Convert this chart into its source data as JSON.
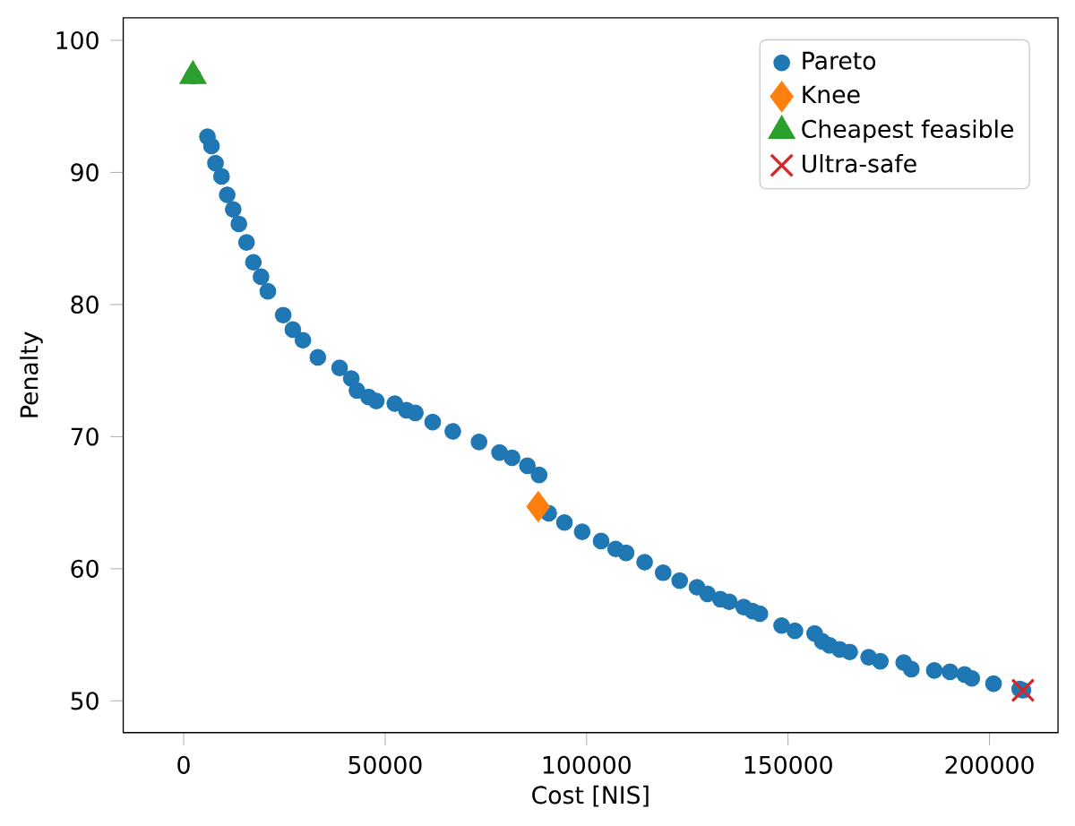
{
  "chart_data": {
    "type": "scatter",
    "xlabel": "Cost [NIS]",
    "ylabel": "Penalty",
    "xlim": [
      -15000,
      217000
    ],
    "ylim": [
      47.6,
      101.7
    ],
    "xticks": [
      0,
      50000,
      100000,
      150000,
      200000
    ],
    "yticks": [
      50,
      60,
      70,
      80,
      90,
      100
    ],
    "legend": "top right",
    "grid": false,
    "series": [
      {
        "name": "Pareto",
        "color": "#1f77b4",
        "marker": "circle",
        "x": [
          2300,
          5900,
          6900,
          7900,
          9400,
          10800,
          12300,
          13700,
          15600,
          17300,
          19200,
          20900,
          24700,
          27100,
          29600,
          33300,
          38700,
          41600,
          43000,
          45900,
          47800,
          52400,
          55300,
          57500,
          61800,
          66800,
          73300,
          78400,
          81500,
          85300,
          88200,
          90600,
          94500,
          98900,
          103600,
          107200,
          109800,
          114400,
          119000,
          123100,
          127400,
          130000,
          133200,
          135400,
          139000,
          141200,
          143000,
          148400,
          151700,
          156600,
          158500,
          160300,
          162800,
          165300,
          170000,
          172900,
          178700,
          180600,
          186300,
          190200,
          193800,
          195600,
          201000,
          207500,
          208300
        ],
        "values": [
          97.3,
          92.7,
          92.0,
          90.7,
          89.7,
          88.3,
          87.2,
          86.1,
          84.7,
          83.2,
          82.1,
          81.0,
          79.2,
          78.1,
          77.3,
          76.0,
          75.2,
          74.4,
          73.5,
          73.0,
          72.7,
          72.5,
          72.0,
          71.8,
          71.1,
          70.4,
          69.6,
          68.8,
          68.4,
          67.8,
          67.1,
          64.2,
          63.5,
          62.8,
          62.1,
          61.5,
          61.2,
          60.5,
          59.7,
          59.1,
          58.6,
          58.1,
          57.7,
          57.5,
          57.1,
          56.8,
          56.6,
          55.7,
          55.3,
          55.1,
          54.5,
          54.2,
          53.9,
          53.7,
          53.3,
          53.0,
          52.9,
          52.4,
          52.3,
          52.2,
          52.0,
          51.7,
          51.3,
          50.9,
          50.8
        ]
      },
      {
        "name": "Knee",
        "color": "#ff7f0e",
        "marker": "diamond",
        "x": [
          88000
        ],
        "values": [
          64.7
        ]
      },
      {
        "name": "Cheapest feasible",
        "color": "#2ca02c",
        "marker": "triangle",
        "x": [
          2300
        ],
        "values": [
          97.3
        ]
      },
      {
        "name": "Ultra-safe",
        "color": "#d62728",
        "marker": "cross",
        "x": [
          208300
        ],
        "values": [
          50.8
        ]
      }
    ]
  }
}
